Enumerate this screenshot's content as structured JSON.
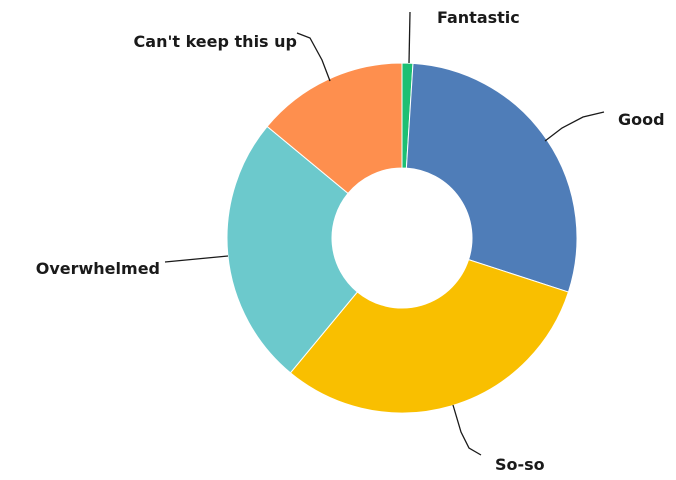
{
  "chart_data": {
    "type": "pie",
    "donut": true,
    "categories": [
      "Fantastic",
      "Good",
      "So-so",
      "Overwhelmed",
      "Can't keep this up"
    ],
    "values": [
      1,
      29,
      31,
      25,
      14
    ],
    "colors": [
      "#1dbf73",
      "#4f7db8",
      "#f9bf00",
      "#6cc9cc",
      "#fe8f4e"
    ],
    "legend": "none",
    "data_labels": "category names with leader lines"
  }
}
